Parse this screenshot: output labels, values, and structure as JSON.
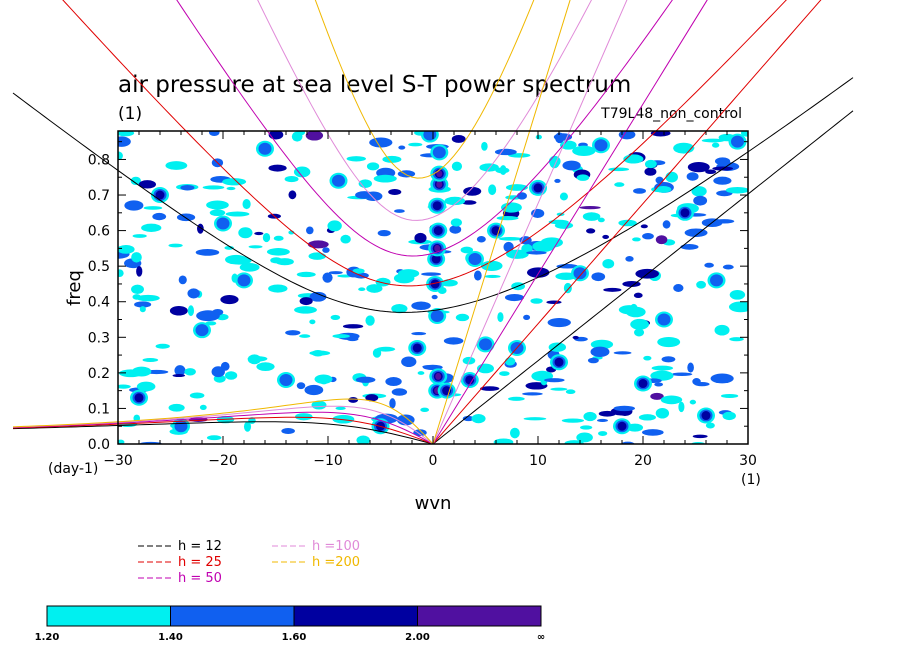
{
  "chart_data": {
    "type": "heatmap",
    "title": "air pressure at sea level S-T power spectrum",
    "unit_label": "(1)",
    "run_label": "T79L48_non_control",
    "xlabel": "wvn",
    "ylabel": "freq",
    "x_unit": "(1)",
    "y_unit": "(day-1)",
    "xlim": [
      -30,
      30
    ],
    "ylim": [
      0,
      0.88
    ],
    "x_ticks": [
      -30,
      -20,
      -10,
      0,
      10,
      20,
      30
    ],
    "x_tick_labels": [
      "−30",
      "−20",
      "−10",
      "0",
      "10",
      "20",
      "30"
    ],
    "y_ticks": [
      0,
      0.1,
      0.2,
      0.3,
      0.4,
      0.5,
      0.6,
      0.7,
      0.8
    ],
    "y_tick_labels": [
      "0.0",
      "0.1",
      "0.2",
      "0.3",
      "0.4",
      "0.5",
      "0.6",
      "0.7",
      "0.8"
    ],
    "dispersion_curves": [
      {
        "label": "h = 12",
        "h": 12,
        "color": "#000000"
      },
      {
        "label": "h = 25",
        "h": 25,
        "color": "#e00000"
      },
      {
        "label": "h = 50",
        "h": 50,
        "color": "#c000b0"
      },
      {
        "label": "h =100",
        "h": 100,
        "color": "#e08ad8"
      },
      {
        "label": "h =200",
        "h": 200,
        "color": "#f0b800"
      }
    ],
    "colorbar": {
      "levels": [
        "1.20",
        "1.40",
        "1.60",
        "2.00",
        "∞"
      ],
      "colors": [
        "#00f0f0",
        "#1060f0",
        "#0000a0",
        "#5010a0"
      ]
    },
    "blobs": [
      {
        "k": 0.6,
        "f": 0.73,
        "v": 4
      },
      {
        "k": 0.6,
        "f": 0.76,
        "v": 4
      },
      {
        "k": 0.4,
        "f": 0.67,
        "v": 3
      },
      {
        "k": 0.5,
        "f": 0.6,
        "v": 3
      },
      {
        "k": 0.3,
        "f": 0.52,
        "v": 3
      },
      {
        "k": 0.4,
        "f": 0.55,
        "v": 4
      },
      {
        "k": 0.2,
        "f": 0.45,
        "v": 3
      },
      {
        "k": 0.4,
        "f": 0.36,
        "v": 2
      },
      {
        "k": -1.5,
        "f": 0.27,
        "v": 3
      },
      {
        "k": 0.4,
        "f": 0.15,
        "v": 4
      },
      {
        "k": 0.5,
        "f": 0.19,
        "v": 4
      },
      {
        "k": 1.3,
        "f": 0.15,
        "v": 3
      },
      {
        "k": 0.6,
        "f": 0.82,
        "v": 2
      },
      {
        "k": -0.3,
        "f": 0.87,
        "v": 2
      },
      {
        "k": 3.5,
        "f": 0.18,
        "v": 3
      },
      {
        "k": 5,
        "f": 0.28,
        "v": 2
      },
      {
        "k": 4,
        "f": 0.52,
        "v": 2
      },
      {
        "k": 6,
        "f": 0.6,
        "v": 3
      },
      {
        "k": 8,
        "f": 0.27,
        "v": 2
      },
      {
        "k": 12,
        "f": 0.23,
        "v": 3
      },
      {
        "k": 14,
        "f": 0.48,
        "v": 2
      },
      {
        "k": 18,
        "f": 0.05,
        "v": 3
      },
      {
        "k": 22,
        "f": 0.35,
        "v": 2
      },
      {
        "k": 24,
        "f": 0.65,
        "v": 3
      },
      {
        "k": 27,
        "f": 0.46,
        "v": 2
      },
      {
        "k": -18,
        "f": 0.46,
        "v": 2
      },
      {
        "k": -26,
        "f": 0.7,
        "v": 3
      },
      {
        "k": -9,
        "f": 0.74,
        "v": 2
      },
      {
        "k": -14,
        "f": 0.18,
        "v": 2
      },
      {
        "k": -5,
        "f": 0.05,
        "v": 3
      },
      {
        "k": -22,
        "f": 0.32,
        "v": 2
      },
      {
        "k": -28,
        "f": 0.13,
        "v": 3
      },
      {
        "k": -20,
        "f": 0.62,
        "v": 2
      },
      {
        "k": 10,
        "f": 0.72,
        "v": 3
      },
      {
        "k": 16,
        "f": 0.84,
        "v": 2
      },
      {
        "k": 29,
        "f": 0.85,
        "v": 2
      },
      {
        "k": -16,
        "f": 0.83,
        "v": 2
      },
      {
        "k": 20,
        "f": 0.17,
        "v": 3
      },
      {
        "k": 26,
        "f": 0.08,
        "v": 3
      },
      {
        "k": -24,
        "f": 0.05,
        "v": 2
      }
    ]
  }
}
